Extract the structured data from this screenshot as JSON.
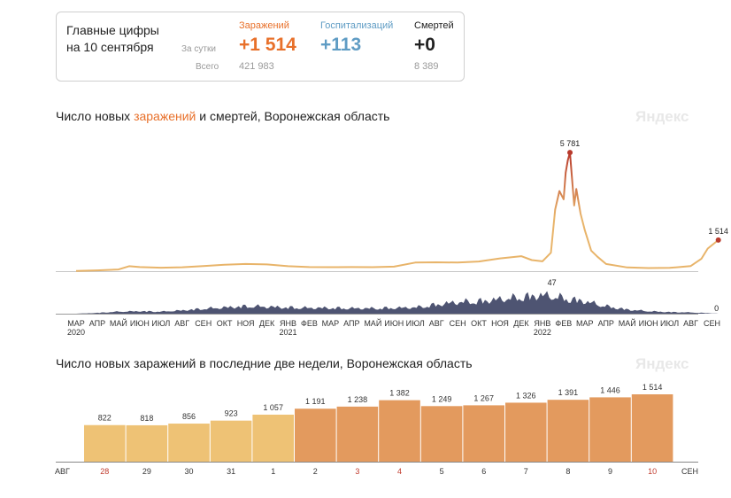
{
  "summary": {
    "title_line1": "Главные цифры",
    "title_line2": "на 10 сентября",
    "row_day": "За сутки",
    "row_total": "Всего",
    "stats": [
      {
        "label": "Заражений",
        "day": "+1 514",
        "total": "421 983",
        "color": "#e8702a"
      },
      {
        "label": "Госпитализаций",
        "day": "+113",
        "total": "",
        "color": "#5f9cc4"
      },
      {
        "label": "Смертей",
        "day": "+0",
        "total": "8 389",
        "color": "#222222"
      }
    ]
  },
  "section1": {
    "title_pre": "Число новых ",
    "title_hl": "заражений",
    "title_post": " и смертей, Воронежская область",
    "watermark": "Яндекс"
  },
  "section2": {
    "title": "Число новых заражений в последние две недели, Воронежская область",
    "watermark": "Яндекс"
  },
  "colors": {
    "infection": "#e8b46a",
    "peak": "#b83a2c",
    "deaths": "#4e5472",
    "bar_light": "#eec275",
    "bar_dark": "#e39a5e",
    "weekend": "#c0392b"
  },
  "chart_data": [
    {
      "type": "line",
      "name": "cases",
      "x_ticks": [
        "МАР",
        "АПР",
        "МАЙ",
        "ИЮН",
        "ИЮЛ",
        "АВГ",
        "СЕН",
        "ОКТ",
        "НОЯ",
        "ДЕК",
        "ЯНВ",
        "ФЕВ",
        "МАР",
        "АПР",
        "МАЙ",
        "ИЮН",
        "ИЮЛ",
        "АВГ",
        "СЕН",
        "ОКТ",
        "НОЯ",
        "ДЕК",
        "ЯНВ",
        "ФЕВ",
        "МАР",
        "АПР",
        "МАЙ",
        "ИЮН",
        "ИЮЛ",
        "АВГ",
        "СЕН"
      ],
      "year_labels": [
        {
          "tick": 0,
          "label": "2020"
        },
        {
          "tick": 10,
          "label": "2021"
        },
        {
          "tick": 22,
          "label": "2022"
        }
      ],
      "x": [
        0,
        1,
        2,
        2.5,
        3,
        4,
        5,
        6,
        7,
        8,
        9,
        10,
        11,
        12,
        13,
        14,
        15,
        16,
        17,
        18,
        19,
        20,
        21,
        21.5,
        22,
        22.4,
        22.6,
        22.8,
        23,
        23.1,
        23.2,
        23.3,
        23.4,
        23.5,
        23.6,
        23.8,
        24,
        24.3,
        24.6,
        25,
        26,
        27,
        28,
        29,
        29.5,
        29.8,
        30.3
      ],
      "values": [
        10,
        40,
        80,
        240,
        200,
        170,
        190,
        250,
        310,
        350,
        330,
        240,
        200,
        195,
        200,
        195,
        220,
        420,
        430,
        420,
        470,
        620,
        730,
        540,
        480,
        900,
        3000,
        3900,
        3500,
        4800,
        5400,
        5781,
        4500,
        3200,
        4000,
        2800,
        2000,
        1000,
        700,
        350,
        180,
        150,
        160,
        250,
        600,
        1100,
        1514
      ],
      "annotations": [
        {
          "label": "5 781"
        },
        {
          "label": "1 514"
        }
      ],
      "ylim": [
        0,
        6000
      ]
    },
    {
      "type": "area",
      "name": "deaths",
      "x": [
        0,
        1,
        2,
        3,
        4,
        5,
        6,
        7,
        8,
        9,
        10,
        11,
        12,
        13,
        14,
        15,
        16,
        17,
        18,
        19,
        20,
        21,
        22,
        23,
        24,
        25,
        26,
        27,
        28,
        29,
        30,
        30.3
      ],
      "values": [
        0,
        2,
        5,
        6,
        5,
        8,
        12,
        15,
        18,
        17,
        15,
        14,
        14,
        13,
        13,
        14,
        15,
        22,
        28,
        30,
        35,
        40,
        45,
        38,
        30,
        18,
        10,
        6,
        4,
        3,
        1,
        0
      ],
      "annotations": [
        {
          "label": "47"
        },
        {
          "label": "0"
        }
      ],
      "ylim": [
        0,
        47
      ]
    },
    {
      "type": "bar",
      "name": "two_weeks",
      "categories": [
        "28",
        "29",
        "30",
        "31",
        "1",
        "2",
        "3",
        "4",
        "5",
        "6",
        "7",
        "8",
        "9",
        "10"
      ],
      "values": [
        822,
        818,
        856,
        923,
        1057,
        1191,
        1238,
        1382,
        1249,
        1267,
        1326,
        1391,
        1446,
        1514
      ],
      "labels": [
        "822",
        "818",
        "856",
        "923",
        "1 057",
        "1 191",
        "1 238",
        "1 382",
        "1 249",
        "1 267",
        "1 326",
        "1 391",
        "1 446",
        "1 514"
      ],
      "weekend": [
        true,
        false,
        false,
        false,
        false,
        false,
        true,
        true,
        false,
        false,
        false,
        false,
        false,
        true
      ],
      "month_left": "АВГ",
      "month_right": "СЕН",
      "ylim": [
        0,
        1600
      ]
    }
  ]
}
